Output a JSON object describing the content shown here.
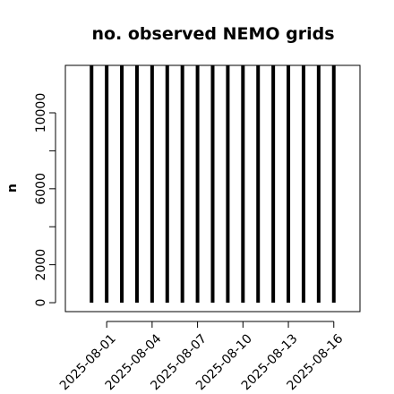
{
  "chart_data": {
    "type": "bar",
    "title": "no. observed NEMO grids",
    "y_label": "n",
    "x": [
      "2025-07-31",
      "2025-08-01",
      "2025-08-02",
      "2025-08-03",
      "2025-08-04",
      "2025-08-05",
      "2025-08-06",
      "2025-08-07",
      "2025-08-08",
      "2025-08-09",
      "2025-08-10",
      "2025-08-11",
      "2025-08-12",
      "2025-08-13",
      "2025-08-14",
      "2025-08-15",
      "2025-08-16"
    ],
    "values": [
      12500,
      12500,
      12500,
      12500,
      12500,
      12500,
      12500,
      12500,
      12500,
      12500,
      12500,
      12500,
      12500,
      12500,
      12500,
      12500,
      12500
    ],
    "color": "#000000",
    "xlim": [
      "2025-07-29T06:30",
      "2025-08-17T17:30"
    ],
    "xticks": [
      "2025-08-01",
      "2025-08-04",
      "2025-08-07",
      "2025-08-10",
      "2025-08-13",
      "2025-08-16"
    ],
    "ylim": [
      -470,
      12500
    ],
    "yticks": [
      0,
      2000,
      {
        "value": 4000,
        "label": null
      },
      6000,
      {
        "value": 8000,
        "label": null
      },
      10000
    ]
  }
}
